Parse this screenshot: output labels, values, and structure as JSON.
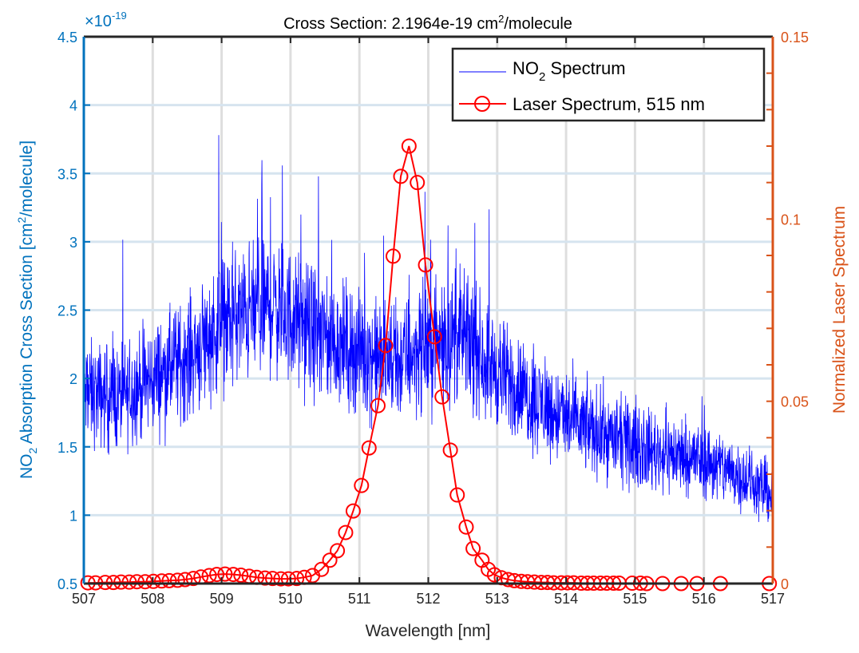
{
  "chart_data": {
    "type": "line",
    "title": "Cross Section: 2.1964e-19 cm",
    "title_sup": "2",
    "title_suffix": "/molecule",
    "xlabel": "Wavelength [nm]",
    "ylabel_left": {
      "pre": "NO",
      "sub": "2",
      "mid": " Absorption Cross Section [cm",
      "sup": "2",
      "post": "/molecule]"
    },
    "ylabel_right": "Normalized Laser Spectrum",
    "left_exponent": {
      "prefix": "×10",
      "sup": "-19"
    },
    "xlim": [
      507,
      517
    ],
    "ylim_left": [
      0.5,
      4.5
    ],
    "ylim_right": [
      0,
      0.15
    ],
    "xticks": [
      "507",
      "508",
      "509",
      "510",
      "511",
      "512",
      "513",
      "514",
      "515",
      "516",
      "517"
    ],
    "yticks_left": [
      "0.5",
      "1",
      "1.5",
      "2",
      "2.5",
      "3",
      "3.5",
      "4",
      "4.5"
    ],
    "yticks_right": [
      "0",
      "0.05",
      "0.1",
      "0.15"
    ],
    "grid": true,
    "legend_position": "top-right",
    "colors": {
      "left_axis": "#0072BD",
      "right_axis": "#D95319",
      "no2": "#0000FF",
      "laser": "#FF0000"
    },
    "series": [
      {
        "name": "NO2 Spectrum",
        "legend": {
          "pre": "NO",
          "sub": "2",
          "post": " Spectrum"
        },
        "axis": "left",
        "note": "dense noisy trace; envelope (mean, x1e-19) and noise amplitude",
        "envelope_x": [
          507,
          507.5,
          508,
          508.5,
          509,
          509.5,
          509.7,
          510,
          510.5,
          511,
          511.5,
          512,
          512.5,
          513,
          513.5,
          514,
          514.5,
          515,
          515.5,
          516,
          516.5,
          517
        ],
        "envelope_y": [
          1.9,
          1.85,
          2.0,
          2.15,
          2.4,
          2.5,
          2.55,
          2.45,
          2.3,
          2.2,
          2.1,
          2.25,
          2.3,
          2.05,
          1.85,
          1.7,
          1.6,
          1.5,
          1.45,
          1.4,
          1.3,
          1.15
        ],
        "noise_amplitude": 0.28,
        "peak_max": 4.15
      },
      {
        "name": "Laser Spectrum, 515 nm",
        "axis": "right",
        "marker": "circle",
        "x": [
          507.06,
          507.17,
          507.31,
          507.43,
          507.54,
          507.66,
          507.77,
          507.89,
          508.01,
          508.13,
          508.24,
          508.36,
          508.47,
          508.59,
          508.7,
          508.82,
          508.93,
          509.05,
          509.17,
          509.28,
          509.4,
          509.51,
          509.63,
          509.74,
          509.86,
          509.97,
          510.09,
          510.2,
          510.32,
          510.45,
          510.57,
          510.68,
          510.8,
          510.91,
          511.03,
          511.14,
          511.27,
          511.38,
          511.49,
          511.6,
          511.72,
          511.84,
          511.96,
          512.09,
          512.2,
          512.32,
          512.42,
          512.55,
          512.65,
          512.78,
          512.87,
          512.96,
          513.06,
          513.16,
          513.25,
          513.35,
          513.44,
          513.54,
          513.64,
          513.73,
          513.82,
          513.93,
          514.02,
          514.11,
          514.22,
          514.31,
          514.4,
          514.5,
          514.59,
          514.69,
          514.77,
          514.96,
          515.08,
          515.17,
          515.4,
          515.67,
          515.9,
          516.24,
          516.95
        ],
        "y": [
          0.0002,
          0.0002,
          0.0003,
          0.0003,
          0.0004,
          0.0004,
          0.0005,
          0.0005,
          0.0006,
          0.0007,
          0.0008,
          0.0009,
          0.0011,
          0.0014,
          0.0018,
          0.0022,
          0.0025,
          0.0026,
          0.0025,
          0.0023,
          0.002,
          0.0017,
          0.0015,
          0.0014,
          0.0013,
          0.0013,
          0.0014,
          0.0017,
          0.0022,
          0.0039,
          0.0064,
          0.009,
          0.014,
          0.0199,
          0.0269,
          0.0372,
          0.0488,
          0.0653,
          0.0898,
          0.1117,
          0.12,
          0.11,
          0.0874,
          0.0677,
          0.0512,
          0.0366,
          0.0243,
          0.0155,
          0.0096,
          0.0064,
          0.0039,
          0.0024,
          0.0016,
          0.0011,
          0.0008,
          0.0006,
          0.0005,
          0.0004,
          0.0003,
          0.0003,
          0.0002,
          0.0002,
          0.0002,
          0.0002,
          0.0001,
          0.0001,
          0.0001,
          0.0001,
          0.0001,
          0.0001,
          0.0001,
          0.0001,
          0.0001,
          0.0,
          0.0,
          0.0,
          0.0,
          0.0,
          0.0
        ]
      }
    ]
  }
}
